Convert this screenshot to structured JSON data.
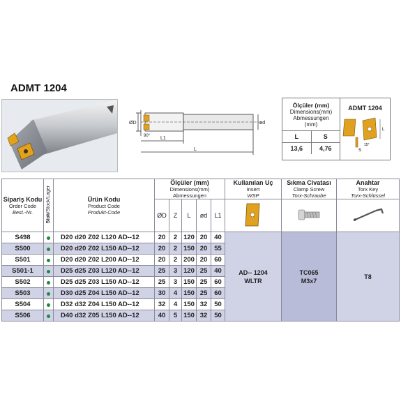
{
  "title": "ADMT 1204",
  "drawing": {
    "d_label": "ØD",
    "d2_label": "ød",
    "l1_label": "L1",
    "l_label": "L",
    "angle_label": "90°"
  },
  "dimensions_box": {
    "title": "Ölçüler (mm)",
    "sub1": "Dimensions(mm)",
    "sub2": "Abmessungen",
    "sub3": "(mm)",
    "col_l": "L",
    "col_s": "S",
    "val_l": "13,6",
    "val_s": "4,76",
    "insert_title": "ADMT 1204",
    "insert_labels": {
      "l": "L",
      "s": "S",
      "angle": "15°"
    }
  },
  "table": {
    "order_code": {
      "main": "Sipariş Kodu",
      "sub": "Order Code",
      "sub_it": "Best.-Nr."
    },
    "stock": {
      "main": "Stok",
      "sub": "/Stock/Lager"
    },
    "product_code": {
      "main": "Ürün Kodu",
      "sub": "Product Code",
      "sub_it": "Produkt-Code"
    },
    "dimensions": {
      "main": "Ölçüler (mm)",
      "sub1": "Dimensions(mm)",
      "sub2": "Abmessungen"
    },
    "dim_cols": [
      "ØD",
      "Z",
      "L",
      "ød",
      "L1"
    ],
    "insert": {
      "main": "Kullanılan Uç",
      "sub": "Insert",
      "sub_it": "WSP"
    },
    "screw": {
      "main": "Sıkma Civatası",
      "sub": "Clamp Screw",
      "sub_it": "Torx-Schraube"
    },
    "key": {
      "main": "Anahtar",
      "sub": "Torx Key",
      "sub_it": "Torx-Schlüssel"
    },
    "rows": [
      {
        "code": "S498",
        "product": "D20 d20 Z02 L120 AD--12",
        "d": "20",
        "z": "2",
        "l": "120",
        "d2": "20",
        "l1": "40"
      },
      {
        "code": "S500",
        "product": "D20 d20 Z02 L150 AD--12",
        "d": "20",
        "z": "2",
        "l": "150",
        "d2": "20",
        "l1": "55"
      },
      {
        "code": "S501",
        "product": "D20 d20 Z02 L200 AD--12",
        "d": "20",
        "z": "2",
        "l": "200",
        "d2": "20",
        "l1": "60"
      },
      {
        "code": "S501-1",
        "product": "D25 d25 Z03 L120 AD--12",
        "d": "25",
        "z": "3",
        "l": "120",
        "d2": "25",
        "l1": "40"
      },
      {
        "code": "S502",
        "product": "D25 d25 Z03 L150 AD--12",
        "d": "25",
        "z": "3",
        "l": "150",
        "d2": "25",
        "l1": "60"
      },
      {
        "code": "S503",
        "product": "D30 d25 Z04 L150 AD--12",
        "d": "30",
        "z": "4",
        "l": "150",
        "d2": "25",
        "l1": "60"
      },
      {
        "code": "S504",
        "product": "D32 d32 Z04 L150 AD--12",
        "d": "32",
        "z": "4",
        "l": "150",
        "d2": "32",
        "l1": "50"
      },
      {
        "code": "S506",
        "product": "D40 d32 Z05 L150 AD--12",
        "d": "40",
        "z": "5",
        "l": "150",
        "d2": "32",
        "l1": "50"
      }
    ],
    "insert_value_1": "AD-- 1204",
    "insert_value_2": "WLTR",
    "screw_value_1": "TC065",
    "screw_value_2": "M3x7",
    "key_value": "T8"
  },
  "colors": {
    "accent_red": "#d5241c",
    "row_alt": "#d0d2e6",
    "stock_dot": "#1f8a3a",
    "insert_gold": "#e0a020"
  }
}
